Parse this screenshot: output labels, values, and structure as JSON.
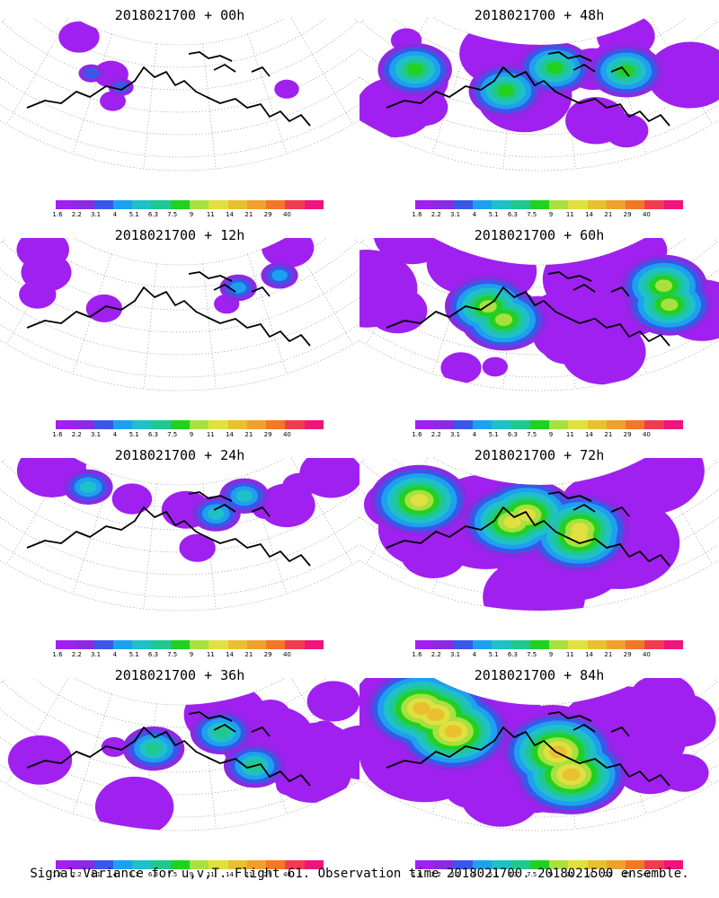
{
  "panels": [
    {
      "title": "2018021700 + 00h",
      "level": 0
    },
    {
      "title": "2018021700 + 48h",
      "level": 4
    },
    {
      "title": "2018021700 + 12h",
      "level": 1
    },
    {
      "title": "2018021700 + 60h",
      "level": 5
    },
    {
      "title": "2018021700 + 24h",
      "level": 2
    },
    {
      "title": "2018021700 + 72h",
      "level": 6
    },
    {
      "title": "2018021700 + 36h",
      "level": 3
    },
    {
      "title": "2018021700 + 84h",
      "level": 7
    }
  ],
  "colorbar": {
    "colors": [
      "#a020f0",
      "#8a2be2",
      "#3a58e8",
      "#1ea0f0",
      "#20c0c8",
      "#20c890",
      "#22d022",
      "#a8e040",
      "#e0e040",
      "#e8c030",
      "#f0a030",
      "#f07828",
      "#f03c50",
      "#f0147c"
    ],
    "labels": [
      "1.6",
      "2.2",
      "3.1",
      "4",
      "5.1",
      "6.3",
      "7.5",
      "9",
      "11",
      "14",
      "21",
      "29",
      "40"
    ]
  },
  "footer": "Signal Variance for u,v,T. Flight 61. Observation time 2018021700. 2018021500 ensemble."
}
